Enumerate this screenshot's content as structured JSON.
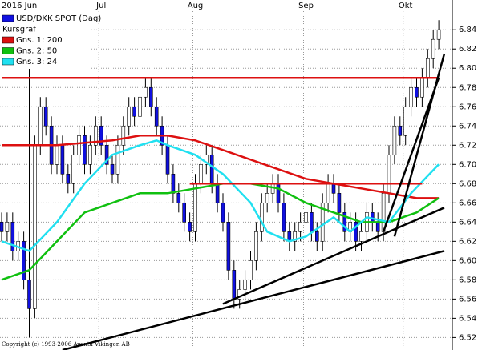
{
  "chart_data": {
    "type": "candlestick",
    "legend_title": "Kursgraf",
    "copyright": "Copyright (c) 1993-2006 Aventa Vikingen AB",
    "categories": [
      "2016 Jun",
      null,
      null,
      null,
      null,
      null,
      null,
      null,
      null,
      null,
      null,
      null,
      null,
      null,
      null,
      null,
      null,
      null,
      "Jul",
      null,
      null,
      null,
      null,
      null,
      null,
      null,
      null,
      null,
      null,
      null,
      null,
      null,
      null,
      null,
      null,
      "Aug",
      null,
      null,
      null,
      null,
      null,
      null,
      null,
      null,
      null,
      null,
      null,
      null,
      null,
      null,
      null,
      null,
      null,
      null,
      null,
      "Sep",
      null,
      null,
      null,
      null,
      null,
      null,
      null,
      null,
      null,
      null,
      null,
      null,
      null,
      null,
      null,
      null,
      null,
      "Okt",
      null,
      null,
      null,
      null,
      null,
      null
    ],
    "candles": {
      "name": "USD/DKK SPOT (Dag)",
      "color": "#1010e0",
      "open": [
        6.64,
        6.63,
        6.64,
        6.61,
        6.62,
        6.58,
        6.55,
        6.72,
        6.76,
        6.74,
        6.7,
        6.72,
        6.69,
        6.68,
        6.71,
        6.73,
        6.7,
        6.72,
        6.74,
        6.72,
        6.7,
        6.69,
        6.72,
        6.74,
        6.76,
        6.75,
        6.77,
        6.78,
        6.76,
        6.74,
        6.72,
        6.69,
        6.67,
        6.66,
        6.64,
        6.63,
        6.68,
        6.7,
        6.71,
        6.68,
        6.66,
        6.64,
        6.59,
        6.56,
        6.57,
        6.58,
        6.6,
        6.63,
        6.66,
        6.67,
        6.68,
        6.66,
        6.63,
        6.62,
        6.63,
        6.64,
        6.65,
        6.63,
        6.62,
        6.66,
        6.68,
        6.67,
        6.65,
        6.63,
        6.64,
        6.62,
        6.63,
        6.65,
        6.64,
        6.63,
        6.67,
        6.71,
        6.74,
        6.73,
        6.76,
        6.78,
        6.77,
        6.79,
        6.81,
        6.83
      ],
      "high": [
        6.65,
        6.65,
        6.65,
        6.63,
        6.63,
        6.8,
        6.73,
        6.77,
        6.77,
        6.75,
        6.73,
        6.73,
        6.7,
        6.72,
        6.74,
        6.74,
        6.73,
        6.75,
        6.75,
        6.73,
        6.71,
        6.73,
        6.75,
        6.77,
        6.77,
        6.78,
        6.79,
        6.79,
        6.77,
        6.75,
        6.73,
        6.7,
        6.68,
        6.67,
        6.65,
        6.69,
        6.71,
        6.72,
        6.72,
        6.69,
        6.67,
        6.65,
        6.6,
        6.58,
        6.59,
        6.61,
        6.64,
        6.67,
        6.68,
        6.69,
        6.69,
        6.67,
        6.64,
        6.64,
        6.65,
        6.66,
        6.66,
        6.64,
        6.67,
        6.69,
        6.69,
        6.68,
        6.66,
        6.65,
        6.65,
        6.64,
        6.66,
        6.66,
        6.65,
        6.68,
        6.72,
        6.75,
        6.75,
        6.77,
        6.79,
        6.79,
        6.8,
        6.82,
        6.84,
        6.85
      ],
      "low": [
        6.62,
        6.62,
        6.6,
        6.6,
        6.57,
        6.52,
        6.54,
        6.71,
        6.73,
        6.69,
        6.69,
        6.68,
        6.67,
        6.67,
        6.7,
        6.69,
        6.69,
        6.71,
        6.71,
        6.69,
        6.68,
        6.68,
        6.71,
        6.73,
        6.74,
        6.74,
        6.76,
        6.75,
        6.73,
        6.71,
        6.68,
        6.66,
        6.65,
        6.63,
        6.62,
        6.62,
        6.67,
        6.69,
        6.67,
        6.65,
        6.63,
        6.58,
        6.55,
        6.55,
        6.56,
        6.57,
        6.59,
        6.62,
        6.65,
        6.66,
        6.65,
        6.62,
        6.61,
        6.61,
        6.62,
        6.63,
        6.62,
        6.61,
        6.61,
        6.65,
        6.66,
        6.64,
        6.62,
        6.62,
        6.61,
        6.61,
        6.62,
        6.63,
        6.62,
        6.62,
        6.66,
        6.7,
        6.72,
        6.72,
        6.75,
        6.76,
        6.76,
        6.78,
        6.8,
        6.82
      ],
      "close": [
        6.63,
        6.64,
        6.61,
        6.62,
        6.58,
        6.55,
        6.72,
        6.76,
        6.74,
        6.7,
        6.72,
        6.69,
        6.68,
        6.71,
        6.73,
        6.7,
        6.72,
        6.74,
        6.72,
        6.7,
        6.69,
        6.72,
        6.74,
        6.76,
        6.75,
        6.77,
        6.78,
        6.76,
        6.74,
        6.72,
        6.69,
        6.67,
        6.66,
        6.64,
        6.63,
        6.68,
        6.7,
        6.71,
        6.68,
        6.66,
        6.64,
        6.59,
        6.56,
        6.57,
        6.58,
        6.6,
        6.63,
        6.66,
        6.67,
        6.68,
        6.66,
        6.63,
        6.62,
        6.63,
        6.64,
        6.65,
        6.63,
        6.62,
        6.66,
        6.68,
        6.67,
        6.65,
        6.63,
        6.64,
        6.62,
        6.63,
        6.65,
        6.64,
        6.63,
        6.67,
        6.71,
        6.74,
        6.73,
        6.76,
        6.78,
        6.77,
        6.79,
        6.81,
        6.83,
        6.84
      ]
    },
    "series": [
      {
        "name": "Gns. 1: 200",
        "color": "#dd1010",
        "x": [
          0,
          10,
          20,
          25,
          30,
          35,
          40,
          45,
          50,
          55,
          60,
          65,
          70,
          75,
          79
        ],
        "values": [
          6.72,
          6.72,
          6.725,
          6.73,
          6.73,
          6.725,
          6.715,
          6.705,
          6.695,
          6.685,
          6.68,
          6.675,
          6.67,
          6.665,
          6.665
        ]
      },
      {
        "name": "Gns. 2: 50",
        "color": "#10c010",
        "x": [
          0,
          5,
          10,
          15,
          20,
          25,
          30,
          35,
          40,
          45,
          50,
          55,
          60,
          65,
          70,
          75,
          79
        ],
        "values": [
          6.58,
          6.59,
          6.62,
          6.65,
          6.66,
          6.67,
          6.67,
          6.675,
          6.68,
          6.68,
          6.675,
          6.66,
          6.65,
          6.64,
          6.64,
          6.65,
          6.665
        ]
      },
      {
        "name": "Gns. 3: 24",
        "color": "#20e0f0",
        "x": [
          0,
          5,
          10,
          15,
          20,
          25,
          28,
          30,
          35,
          40,
          45,
          48,
          52,
          55,
          60,
          63,
          66,
          70,
          74,
          79
        ],
        "values": [
          6.62,
          6.61,
          6.64,
          6.68,
          6.71,
          6.72,
          6.725,
          6.72,
          6.71,
          6.69,
          6.66,
          6.63,
          6.62,
          6.625,
          6.645,
          6.63,
          6.645,
          6.64,
          6.67,
          6.7
        ]
      }
    ],
    "trendlines": [
      {
        "color": "#dd1010",
        "x": [
          0,
          79
        ],
        "values": [
          6.79,
          6.79
        ]
      },
      {
        "color": "#dd1010",
        "x": [
          34,
          76
        ],
        "values": [
          6.68,
          6.68
        ]
      },
      {
        "color": "#000000",
        "x": [
          11,
          80
        ],
        "values": [
          6.507,
          6.61
        ]
      },
      {
        "color": "#000000",
        "x": [
          40,
          80
        ],
        "values": [
          6.555,
          6.655
        ]
      },
      {
        "color": "#000000",
        "x": [
          71,
          80
        ],
        "values": [
          6.625,
          6.815
        ]
      },
      {
        "color": "#000000",
        "x": [
          69,
          79
        ],
        "values": [
          6.63,
          6.79
        ]
      }
    ],
    "ylim": [
      6.507,
      6.871
    ],
    "yticks": [
      6.52,
      6.54,
      6.56,
      6.58,
      {
        "value": 6.6,
        "label": "6.60"
      },
      6.62,
      6.64,
      6.66,
      6.68,
      {
        "value": 6.7,
        "label": "6.70"
      },
      6.72,
      6.74,
      6.76,
      6.78,
      {
        "value": 6.8,
        "label": "6.80"
      },
      6.82,
      6.84
    ],
    "grid": true
  }
}
